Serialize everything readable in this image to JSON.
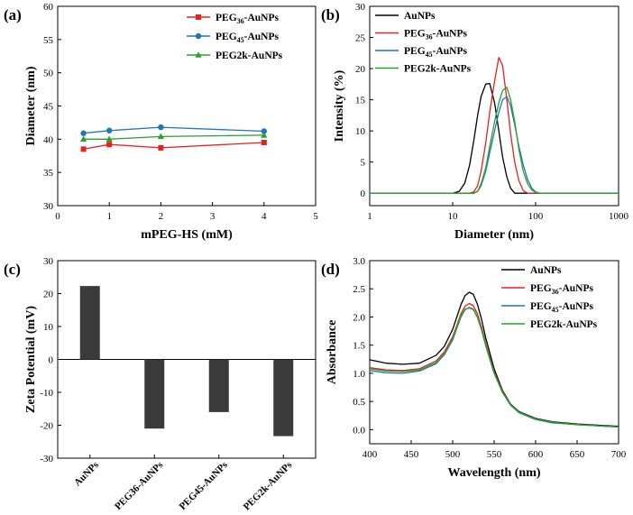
{
  "chart_data": [
    {
      "type": "line",
      "panel_label": "(a)",
      "xlabel": "mPEG-HS (mM)",
      "ylabel": "Diameter (nm)",
      "xlim": [
        0,
        5
      ],
      "ylim": [
        30,
        60
      ],
      "xticks": [
        0,
        1,
        2,
        3,
        4,
        5
      ],
      "yticks": [
        30,
        35,
        40,
        45,
        50,
        55,
        60
      ],
      "legend_position": "top-right",
      "x": [
        0.5,
        1,
        2,
        4
      ],
      "series": [
        {
          "name": "PEG36-AuNPs",
          "legend_main": "PEG",
          "legend_sub": "36",
          "legend_tail": "-AuNPs",
          "color": "#e8211d",
          "marker": "square",
          "values": [
            38.5,
            39.2,
            38.7,
            39.5
          ]
        },
        {
          "name": "PEG45-AuNPs",
          "legend_main": "PEG",
          "legend_sub": "45",
          "legend_tail": "-AuNPs",
          "color": "#1f77b4",
          "marker": "circle",
          "values": [
            40.9,
            41.3,
            41.8,
            41.2
          ]
        },
        {
          "name": "PEG2k-AuNPs",
          "legend_main": "PEG2k-AuNPs",
          "legend_sub": "",
          "legend_tail": "",
          "color": "#2ca02c",
          "marker": "triangle",
          "values": [
            40.0,
            40.0,
            40.4,
            40.6
          ]
        }
      ]
    },
    {
      "type": "line",
      "panel_label": "(b)",
      "xlabel": "Diameter (nm)",
      "ylabel": "Intensity (%)",
      "xscale": "log",
      "xlim": [
        1,
        1000
      ],
      "ylim": [
        -2,
        30
      ],
      "xticks": [
        1,
        10,
        100,
        1000
      ],
      "yticks": [
        0,
        5,
        10,
        15,
        20,
        25,
        30
      ],
      "legend_position": "top-left",
      "x": [
        1,
        10,
        12,
        14,
        16,
        18,
        20,
        22,
        25,
        28,
        32,
        36,
        40,
        45,
        50,
        56,
        63,
        71,
        80,
        90,
        100,
        112,
        126,
        141,
        200,
        1000
      ],
      "series": [
        {
          "name": "AuNPs",
          "legend_main": "AuNPs",
          "legend_sub": "",
          "legend_tail": "",
          "color": "#000000",
          "values": [
            0,
            0,
            0.3,
            1.6,
            4.5,
            8.5,
            12.5,
            15.5,
            17.5,
            17.6,
            14.5,
            10,
            5.8,
            2.6,
            0.8,
            0,
            0,
            0,
            0,
            0,
            0,
            0,
            0,
            0,
            0,
            0
          ]
        },
        {
          "name": "PEG36-AuNPs",
          "legend_main": "PEG",
          "legend_sub": "36",
          "legend_tail": "-AuNPs",
          "color": "#e8211d",
          "values": [
            0,
            0,
            0,
            0,
            0,
            0.2,
            1.2,
            3.5,
            8,
            13,
            18,
            21.8,
            20.5,
            15,
            9.5,
            5,
            2,
            0.4,
            0,
            0,
            0,
            0,
            0,
            0,
            0,
            0
          ]
        },
        {
          "name": "PEG45-AuNPs",
          "legend_main": "PEG",
          "legend_sub": "45",
          "legend_tail": "-AuNPs",
          "color": "#1f77b4",
          "values": [
            0,
            0,
            0,
            0,
            0,
            0,
            0.3,
            1.2,
            3.5,
            6.5,
            10,
            13,
            15,
            15.5,
            14,
            11,
            7.5,
            4.5,
            2.2,
            0.8,
            0.2,
            0,
            0,
            0,
            0,
            0
          ]
        },
        {
          "name": "PEG2k-AuNPs",
          "legend_main": "PEG2k-AuNPs",
          "legend_sub": "",
          "legend_tail": "",
          "color": "#2ca02c",
          "values": [
            0,
            0,
            0,
            0,
            0,
            0,
            0.3,
            1.5,
            4,
            7.5,
            11.5,
            14.5,
            16.5,
            17,
            15,
            11.5,
            7,
            3.5,
            1.5,
            0.5,
            0.1,
            0,
            0,
            0,
            0,
            0
          ]
        }
      ]
    },
    {
      "type": "bar",
      "panel_label": "(c)",
      "xlabel": "",
      "ylabel": "Zeta Potential (mV)",
      "ylim": [
        -30,
        30
      ],
      "yticks": [
        -30,
        -20,
        -10,
        0,
        10,
        20,
        30
      ],
      "categories": [
        "AuNPs",
        "PEG36-AuNPs",
        "PEG45-AuNPs",
        "PEG2k-AuNPs"
      ],
      "values": [
        22.3,
        -21.0,
        -16.0,
        -23.3
      ],
      "color": "#3a3a3a"
    },
    {
      "type": "line",
      "panel_label": "(d)",
      "xlabel": "Wavelength (nm)",
      "ylabel": "Absorbance",
      "xlim": [
        400,
        700
      ],
      "ylim": [
        -0.25,
        3.0
      ],
      "xticks": [
        400,
        450,
        500,
        550,
        600,
        650,
        700
      ],
      "yticks": [
        0.0,
        0.5,
        1.0,
        1.5,
        2.0,
        2.5,
        3.0
      ],
      "legend_position": "top-right",
      "x": [
        400,
        420,
        440,
        460,
        480,
        490,
        500,
        505,
        510,
        515,
        520,
        525,
        530,
        535,
        540,
        550,
        560,
        570,
        580,
        600,
        620,
        650,
        700
      ],
      "series": [
        {
          "name": "AuNPs",
          "legend_main": "AuNPs",
          "legend_sub": "",
          "legend_tail": "",
          "color": "#000000",
          "values": [
            1.24,
            1.18,
            1.16,
            1.18,
            1.32,
            1.48,
            1.78,
            2.0,
            2.22,
            2.38,
            2.44,
            2.4,
            2.22,
            1.95,
            1.62,
            1.08,
            0.7,
            0.45,
            0.32,
            0.2,
            0.14,
            0.1,
            0.06
          ]
        },
        {
          "name": "PEG36-AuNPs",
          "legend_main": "PEG",
          "legend_sub": "36",
          "legend_tail": "-AuNPs",
          "color": "#e8211d",
          "values": [
            1.1,
            1.06,
            1.05,
            1.08,
            1.22,
            1.38,
            1.65,
            1.85,
            2.06,
            2.19,
            2.24,
            2.2,
            2.05,
            1.81,
            1.52,
            1.03,
            0.68,
            0.44,
            0.31,
            0.19,
            0.13,
            0.09,
            0.05
          ]
        },
        {
          "name": "PEG45-AuNPs",
          "legend_main": "PEG",
          "legend_sub": "45",
          "legend_tail": "-AuNPs",
          "color": "#1f77b4",
          "values": [
            1.05,
            1.01,
            1.0,
            1.04,
            1.17,
            1.33,
            1.59,
            1.8,
            2.0,
            2.13,
            2.17,
            2.14,
            1.99,
            1.76,
            1.48,
            1.0,
            0.66,
            0.43,
            0.3,
            0.18,
            0.12,
            0.09,
            0.05
          ]
        },
        {
          "name": "PEG2k-AuNPs",
          "legend_main": "PEG2k-AuNPs",
          "legend_sub": "",
          "legend_tail": "",
          "color": "#2ca02c",
          "values": [
            1.08,
            1.04,
            1.03,
            1.06,
            1.19,
            1.35,
            1.61,
            1.82,
            2.02,
            2.14,
            2.16,
            2.13,
            1.99,
            1.77,
            1.49,
            1.01,
            0.67,
            0.44,
            0.31,
            0.19,
            0.13,
            0.09,
            0.05
          ]
        }
      ]
    }
  ]
}
